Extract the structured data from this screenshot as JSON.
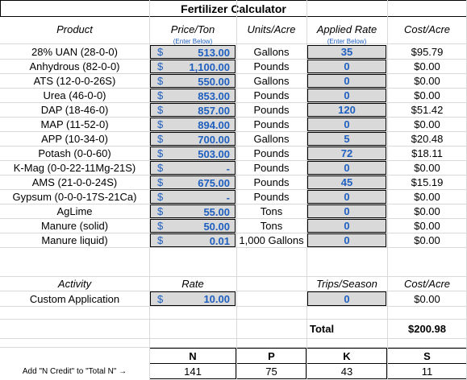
{
  "title": "Fertilizer Calculator",
  "headers": {
    "product": "Product",
    "price": "Price/Ton",
    "units": "Units/Acre",
    "rate": "Applied Rate",
    "cost": "Cost/Acre",
    "price_hint": "(Enter Below)",
    "rate_hint": "(Enter Below)"
  },
  "currency_symbol": "$",
  "products": [
    {
      "name": "28% UAN (28-0-0)",
      "price": "513.00",
      "units": "Gallons",
      "rate": "35",
      "cost": "$95.79"
    },
    {
      "name": "Anhydrous (82-0-0)",
      "price": "1,100.00",
      "units": "Pounds",
      "rate": "0",
      "cost": "$0.00"
    },
    {
      "name": "ATS (12-0-0-26S)",
      "price": "550.00",
      "units": "Gallons",
      "rate": "0",
      "cost": "$0.00"
    },
    {
      "name": "Urea (46-0-0)",
      "price": "853.00",
      "units": "Pounds",
      "rate": "0",
      "cost": "$0.00"
    },
    {
      "name": "DAP (18-46-0)",
      "price": "857.00",
      "units": "Pounds",
      "rate": "120",
      "cost": "$51.42"
    },
    {
      "name": "MAP (11-52-0)",
      "price": "894.00",
      "units": "Pounds",
      "rate": "0",
      "cost": "$0.00"
    },
    {
      "name": "APP (10-34-0)",
      "price": "700.00",
      "units": "Gallons",
      "rate": "5",
      "cost": "$20.48"
    },
    {
      "name": "Potash (0-0-60)",
      "price": "503.00",
      "units": "Pounds",
      "rate": "72",
      "cost": "$18.11"
    },
    {
      "name": "K-Mag (0-0-22-11Mg-21S)",
      "price": "-",
      "units": "Pounds",
      "rate": "0",
      "cost": "$0.00"
    },
    {
      "name": "AMS (21-0-0-24S)",
      "price": "675.00",
      "units": "Pounds",
      "rate": "45",
      "cost": "$15.19"
    },
    {
      "name": "Gypsum (0-0-0-17S-21Ca)",
      "price": "-",
      "units": "Pounds",
      "rate": "0",
      "cost": "$0.00"
    },
    {
      "name": "AgLime",
      "price": "55.00",
      "units": "Tons",
      "rate": "0",
      "cost": "$0.00"
    },
    {
      "name": "Manure (solid)",
      "price": "50.00",
      "units": "Tons",
      "rate": "0",
      "cost": "$0.00"
    },
    {
      "name": "Manure liquid)",
      "price": "0.01",
      "units": "1,000 Gallons",
      "rate": "0",
      "cost": "$0.00"
    }
  ],
  "activity_headers": {
    "activity": "Activity",
    "rate": "Rate",
    "trips": "Trips/Season",
    "cost": "Cost/Acre"
  },
  "activity": {
    "name": "Custom Application",
    "rate": "10.00",
    "trips": "0",
    "cost": "$0.00"
  },
  "total": {
    "label": "Total",
    "value": "$200.98"
  },
  "nutrients": {
    "note": "Add \"N Credit\" to \"Total N\" →",
    "headers": [
      "N",
      "P",
      "K",
      "S"
    ],
    "values": [
      "141",
      "75",
      "43",
      "11"
    ]
  },
  "colors": {
    "input_fill": "#d9d9d9",
    "input_text": "#1f5fbf"
  }
}
